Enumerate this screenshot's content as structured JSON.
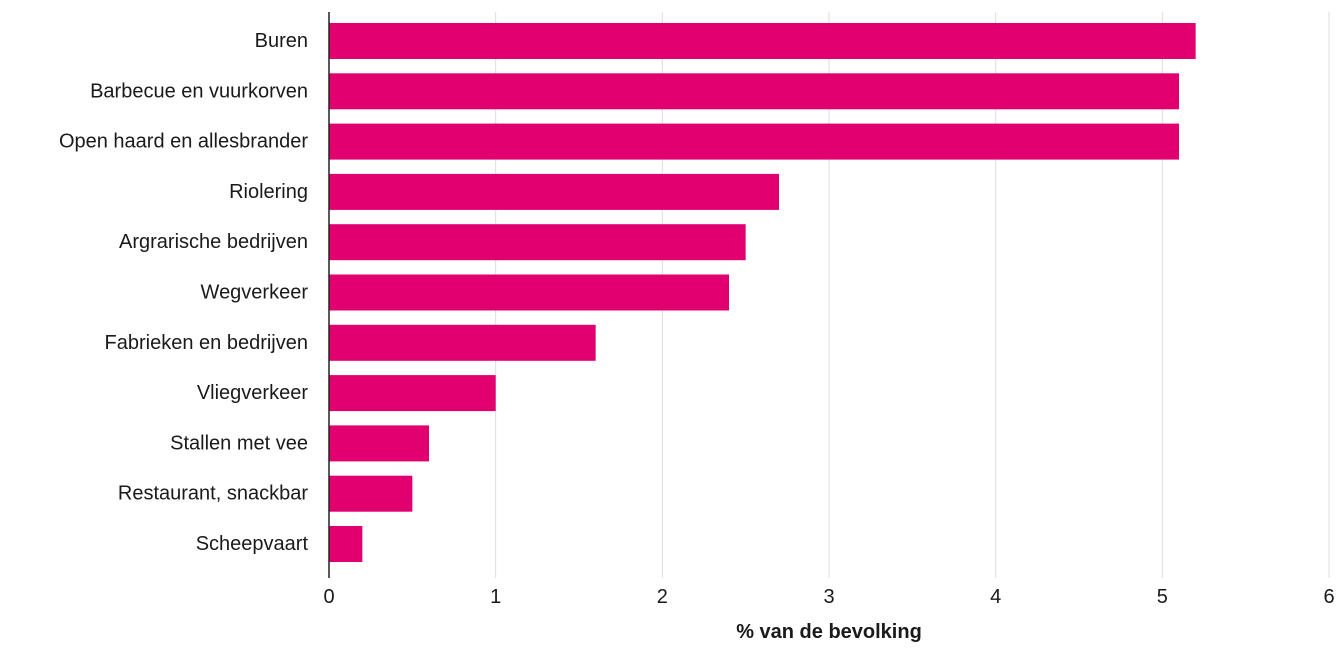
{
  "chart_data": {
    "type": "bar",
    "orientation": "horizontal",
    "categories": [
      "Buren",
      "Barbecue en vuurkorven",
      "Open haard en allesbrander",
      "Riolering",
      "Argrarische bedrijven",
      "Wegverkeer",
      "Fabrieken en bedrijven",
      "Vliegverkeer",
      "Stallen met vee",
      "Restaurant, snackbar",
      "Scheepvaart"
    ],
    "values": [
      5.2,
      5.1,
      5.1,
      2.7,
      2.5,
      2.4,
      1.6,
      1.0,
      0.6,
      0.5,
      0.2
    ],
    "title": "",
    "xlabel": "% van de bevolking",
    "ylabel": "",
    "xlim": [
      0,
      6
    ],
    "xticks": [
      "0",
      "1",
      "2",
      "3",
      "4",
      "5",
      "6"
    ],
    "grid": "vertical",
    "legend": "none",
    "colors": {
      "bar": "#e0006f",
      "grid": "#dddddd",
      "axis": "#222222"
    }
  }
}
